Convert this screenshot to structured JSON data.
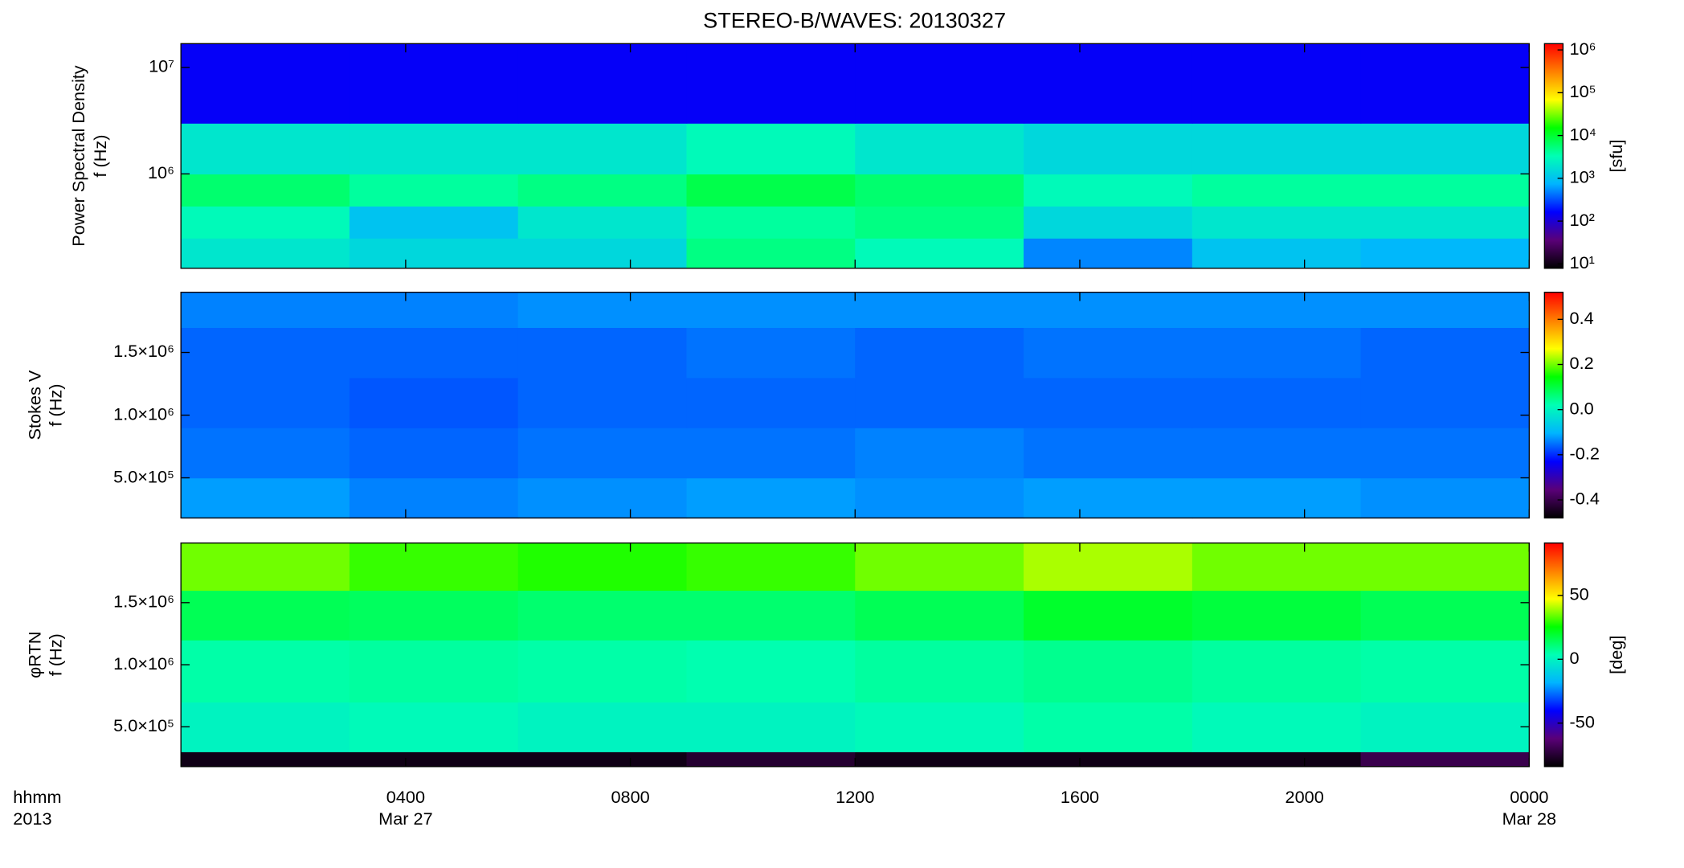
{
  "chart_data": [
    {
      "type": "heatmap",
      "title": "STEREO-B/WAVES: 20130327",
      "ylabel": [
        "Power Spectral Density",
        "f (Hz)"
      ],
      "xlim": [
        0,
        24
      ],
      "ylim": [
        130000,
        16700000
      ],
      "ylog": true,
      "yticks": [
        {
          "value": 1000000,
          "label": "10⁶"
        },
        {
          "value": 10000000,
          "label": "10⁷"
        }
      ],
      "x_bins": [
        0,
        3,
        6,
        9,
        12,
        15,
        18,
        21,
        24
      ],
      "y_bins": [
        130000,
        250000,
        500000,
        1000000,
        3000000,
        16700000
      ],
      "z": [
        [
          2000,
          1500,
          1500,
          5000,
          3000,
          500,
          1000,
          800
        ],
        [
          3000,
          1000,
          2000,
          4000,
          5000,
          1500,
          2000,
          2000
        ],
        [
          6000,
          4000,
          5000,
          8000,
          6000,
          3000,
          4000,
          4000
        ],
        [
          2000,
          2000,
          2000,
          3000,
          2000,
          1500,
          1500,
          1500
        ],
        [
          150,
          150,
          150,
          150,
          150,
          150,
          150,
          150
        ]
      ],
      "clim": [
        7.9,
        1400000
      ],
      "clog": true,
      "cticks": [
        {
          "value": 10,
          "label": "10¹"
        },
        {
          "value": 100,
          "label": "10²"
        },
        {
          "value": 1000,
          "label": "10³"
        },
        {
          "value": 10000,
          "label": "10⁴"
        },
        {
          "value": 100000,
          "label": "10⁵"
        },
        {
          "value": 1000000,
          "label": "10⁶"
        }
      ],
      "clabel": "[sfu]",
      "colormap": [
        "#000000",
        "#5a0078",
        "#0000ff",
        "#00b4ff",
        "#00ffb4",
        "#00ff00",
        "#ffff00",
        "#ff8000",
        "#ff0000"
      ]
    },
    {
      "type": "heatmap",
      "ylabel": [
        "Stokes V",
        "f (Hz)"
      ],
      "xlim": [
        0,
        24
      ],
      "ylim": [
        180000,
        1980000
      ],
      "yticks": [
        {
          "value": 500000,
          "label": "5.0×10⁵"
        },
        {
          "value": 1000000,
          "label": "1.0×10⁶"
        },
        {
          "value": 1500000,
          "label": "1.5×10⁶"
        }
      ],
      "x_bins": [
        0,
        3,
        6,
        9,
        12,
        15,
        18,
        21,
        24
      ],
      "y_bins": [
        180000,
        500000,
        900000,
        1300000,
        1700000,
        1980000
      ],
      "z": [
        [
          -0.12,
          -0.14,
          -0.13,
          -0.12,
          -0.13,
          -0.12,
          -0.12,
          -0.13
        ],
        [
          -0.15,
          -0.16,
          -0.15,
          -0.15,
          -0.14,
          -0.15,
          -0.15,
          -0.15
        ],
        [
          -0.16,
          -0.17,
          -0.16,
          -0.16,
          -0.16,
          -0.16,
          -0.16,
          -0.16
        ],
        [
          -0.16,
          -0.16,
          -0.16,
          -0.15,
          -0.16,
          -0.15,
          -0.15,
          -0.16
        ],
        [
          -0.14,
          -0.14,
          -0.13,
          -0.13,
          -0.13,
          -0.13,
          -0.13,
          -0.13
        ]
      ],
      "clim": [
        -0.48,
        0.52
      ],
      "cticks": [
        -0.4,
        -0.2,
        {
          "value": 0,
          "label": "0.0"
        },
        0.2,
        0.4
      ],
      "colormap": [
        "#000000",
        "#5a0078",
        "#0000ff",
        "#00b4ff",
        "#00ffb4",
        "#00ff00",
        "#ffff00",
        "#ff8000",
        "#ff0000"
      ]
    },
    {
      "type": "heatmap",
      "ylabel": [
        "φRTN",
        "f (Hz)"
      ],
      "xlim": [
        0,
        24
      ],
      "ylim": [
        180000,
        1980000
      ],
      "yticks": [
        {
          "value": 500000,
          "label": "5.0×10⁵"
        },
        {
          "value": 1000000,
          "label": "1.0×10⁶"
        },
        {
          "value": 1500000,
          "label": "1.5×10⁶"
        }
      ],
      "x_bins": [
        0,
        3,
        6,
        9,
        12,
        15,
        18,
        21,
        24
      ],
      "y_bins": [
        180000,
        300000,
        700000,
        1200000,
        1600000,
        1980000
      ],
      "z": [
        [
          -80,
          -80,
          -80,
          -75,
          -80,
          -80,
          -80,
          -70
        ],
        [
          0,
          2,
          0,
          0,
          2,
          5,
          2,
          0
        ],
        [
          5,
          6,
          5,
          4,
          6,
          8,
          6,
          5
        ],
        [
          15,
          14,
          12,
          12,
          15,
          20,
          18,
          15
        ],
        [
          35,
          30,
          28,
          30,
          35,
          40,
          35,
          35
        ]
      ],
      "clim": [
        -84,
        91
      ],
      "cticks": [
        -50,
        0,
        50
      ],
      "clabel": "[deg]",
      "colormap": [
        "#000000",
        "#5a0078",
        "#0000ff",
        "#00b4ff",
        "#00ffb4",
        "#00ff00",
        "#ffff00",
        "#ff8000",
        "#ff0000"
      ],
      "xticks": [
        {
          "value": 4,
          "label": "0400"
        },
        {
          "value": 8,
          "label": "0800"
        },
        {
          "value": 12,
          "label": "1200"
        },
        {
          "value": 16,
          "label": "1600"
        },
        {
          "value": 20,
          "label": "2000"
        },
        {
          "value": 24,
          "label": "0000"
        }
      ],
      "x_date_labels": [
        {
          "value": 4,
          "label": "Mar 27"
        },
        {
          "value": 24,
          "label": "Mar 28"
        }
      ],
      "xlabel": [
        "hhmm",
        "2013"
      ]
    }
  ]
}
